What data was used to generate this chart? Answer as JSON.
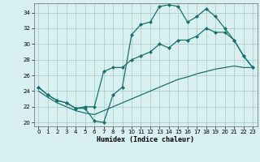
{
  "xlabel": "Humidex (Indice chaleur)",
  "bg_color": "#d8f0f0",
  "grid_color": "#b0cece",
  "line_color": "#1a7070",
  "xlim": [
    -0.5,
    23.5
  ],
  "ylim": [
    19.5,
    35.2
  ],
  "yticks": [
    20,
    22,
    24,
    26,
    28,
    30,
    32,
    34
  ],
  "xticks": [
    0,
    1,
    2,
    3,
    4,
    5,
    6,
    7,
    8,
    9,
    10,
    11,
    12,
    13,
    14,
    15,
    16,
    17,
    18,
    19,
    20,
    21,
    22,
    23
  ],
  "line1_x": [
    0,
    1,
    2,
    3,
    4,
    5,
    6,
    7,
    8,
    9,
    10,
    11,
    12,
    13,
    14,
    15,
    16,
    17,
    18,
    19,
    20,
    21,
    22,
    23
  ],
  "line1_y": [
    24.5,
    23.5,
    22.8,
    22.5,
    21.8,
    21.8,
    20.2,
    20.0,
    23.5,
    24.5,
    31.2,
    32.5,
    32.8,
    34.8,
    35.0,
    34.8,
    32.8,
    33.5,
    34.5,
    33.5,
    32.0,
    30.5,
    28.5,
    27.0
  ],
  "line2_x": [
    0,
    1,
    2,
    3,
    4,
    5,
    6,
    7,
    8,
    9,
    10,
    11,
    12,
    13,
    14,
    15,
    16,
    17,
    18,
    19,
    20,
    21,
    22,
    23
  ],
  "line2_y": [
    24.5,
    23.5,
    22.8,
    22.5,
    21.8,
    22.0,
    22.0,
    26.5,
    27.0,
    27.0,
    28.0,
    28.5,
    29.0,
    30.0,
    29.5,
    30.5,
    30.5,
    31.0,
    32.0,
    31.5,
    31.5,
    30.5,
    28.5,
    27.0
  ],
  "line3_x": [
    0,
    1,
    2,
    3,
    4,
    5,
    6,
    7,
    8,
    9,
    10,
    11,
    12,
    13,
    14,
    15,
    16,
    17,
    18,
    19,
    20,
    21,
    22,
    23
  ],
  "line3_y": [
    24.0,
    23.2,
    22.5,
    22.0,
    21.5,
    21.2,
    21.0,
    21.5,
    22.0,
    22.5,
    23.0,
    23.5,
    24.0,
    24.5,
    25.0,
    25.5,
    25.8,
    26.2,
    26.5,
    26.8,
    27.0,
    27.2,
    27.0,
    27.0
  ]
}
